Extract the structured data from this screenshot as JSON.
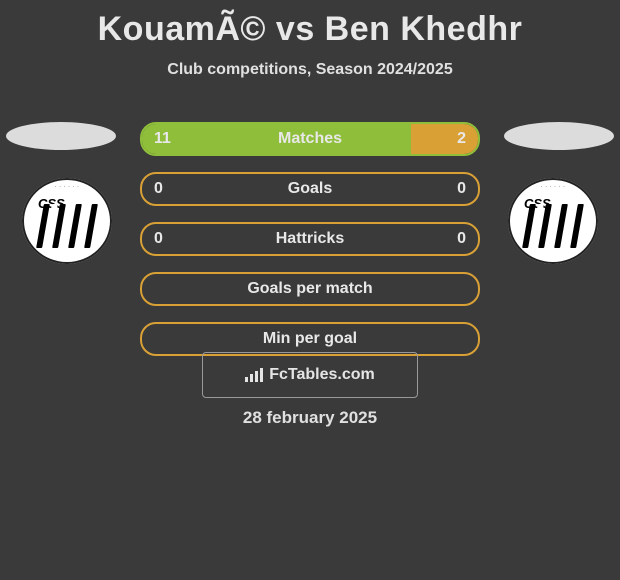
{
  "title": "KouamÃ© vs Ben Khedhr",
  "subtitle": "Club competitions, Season 2024/2025",
  "colors": {
    "background": "#3a3a3a",
    "panel_border_green": "#8fbf3a",
    "panel_border_orange": "#d9a036",
    "fill_green": "#8fbf3a",
    "fill_orange": "#d9a036",
    "text": "#e8e8e8",
    "oval": "#dcdcdc"
  },
  "players": {
    "left": {
      "has_photo": false,
      "club_crest_label": "CSS"
    },
    "right": {
      "has_photo": false,
      "club_crest_label": "CSS"
    }
  },
  "stats": [
    {
      "label": "Matches",
      "left_value": "11",
      "right_value": "2",
      "left_fill_pct": 80,
      "right_fill_pct": 20,
      "left_color": "#8fbf3a",
      "right_color": "#d9a036",
      "border_color": "#8fbf3a"
    },
    {
      "label": "Goals",
      "left_value": "0",
      "right_value": "0",
      "left_fill_pct": 0,
      "right_fill_pct": 0,
      "left_color": "#8fbf3a",
      "right_color": "#d9a036",
      "border_color": "#d9a036"
    },
    {
      "label": "Hattricks",
      "left_value": "0",
      "right_value": "0",
      "left_fill_pct": 0,
      "right_fill_pct": 0,
      "left_color": "#8fbf3a",
      "right_color": "#d9a036",
      "border_color": "#d9a036"
    },
    {
      "label": "Goals per match",
      "left_value": "",
      "right_value": "",
      "left_fill_pct": 0,
      "right_fill_pct": 0,
      "left_color": "#8fbf3a",
      "right_color": "#d9a036",
      "border_color": "#d9a036"
    },
    {
      "label": "Min per goal",
      "left_value": "",
      "right_value": "",
      "left_fill_pct": 0,
      "right_fill_pct": 0,
      "left_color": "#8fbf3a",
      "right_color": "#d9a036",
      "border_color": "#d9a036"
    }
  ],
  "watermark": {
    "text": "FcTables.com",
    "icon": "bar-chart-icon"
  },
  "date": "28 february 2025"
}
